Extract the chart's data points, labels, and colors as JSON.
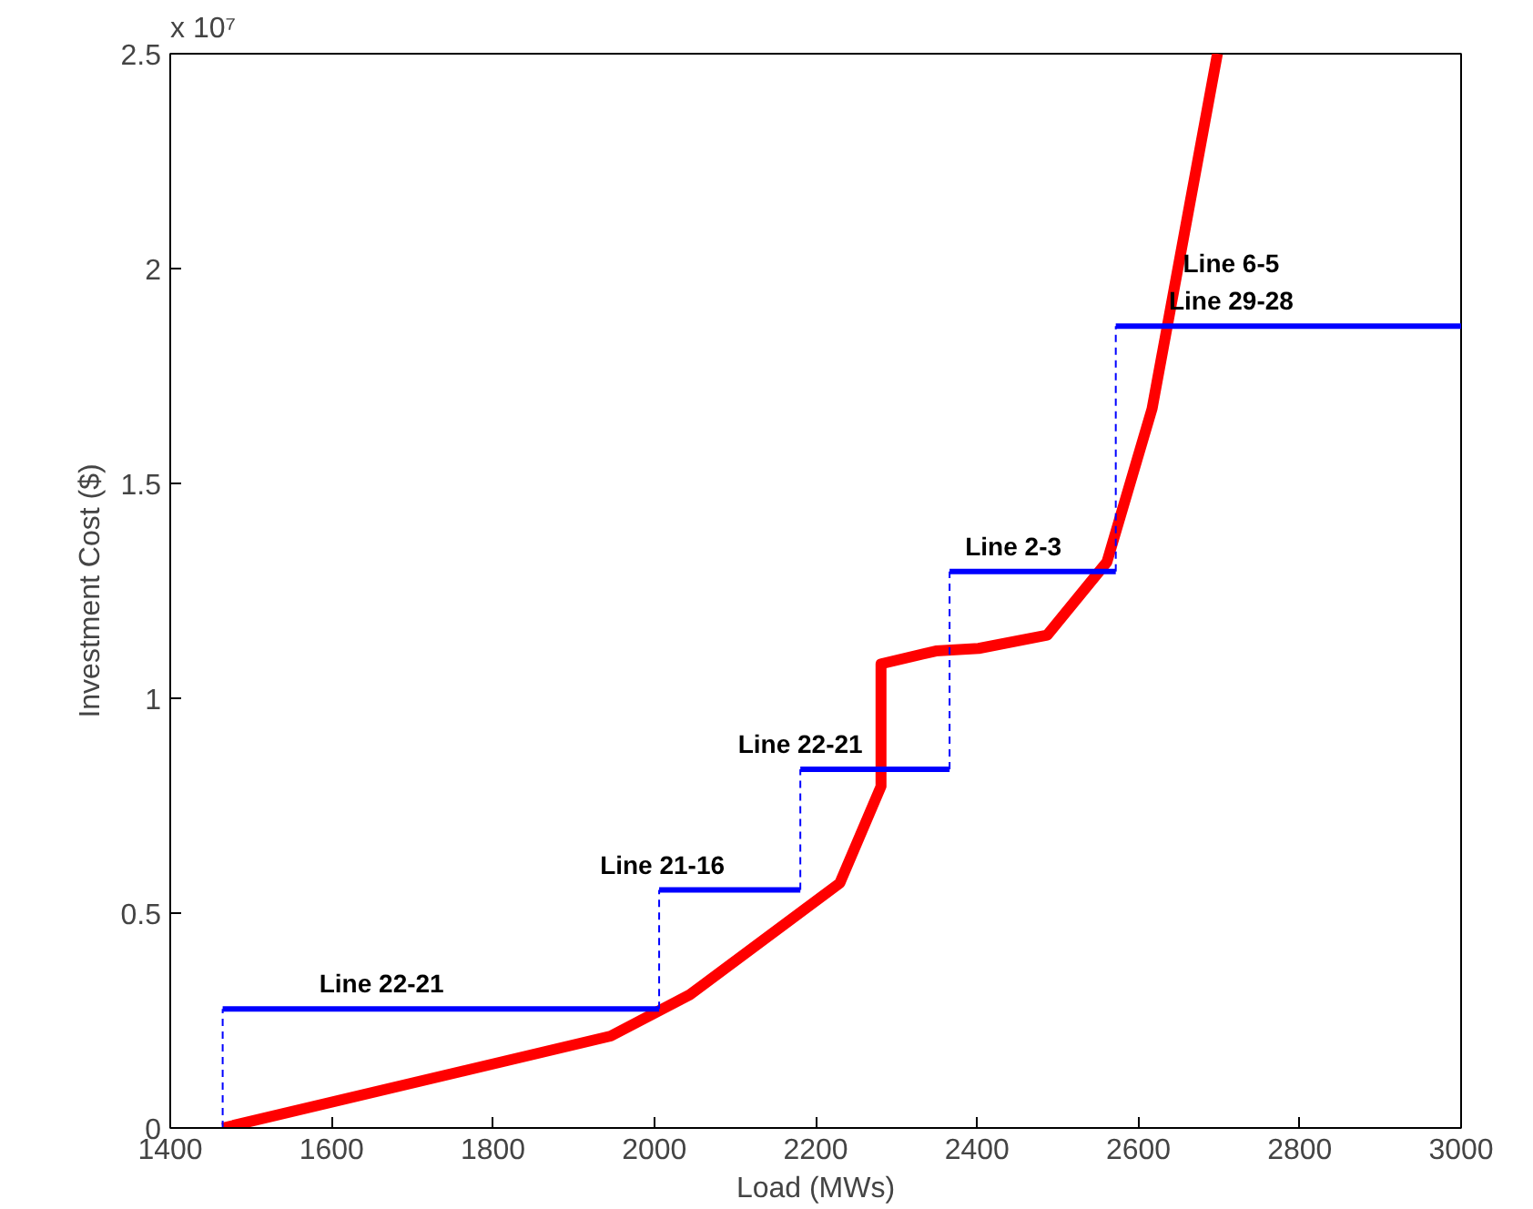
{
  "chart_data": {
    "type": "line",
    "xlabel": "Load (MWs)",
    "ylabel": "Investment Cost ($)",
    "xlim": [
      1400,
      3000
    ],
    "ylim": [
      0,
      2.5
    ],
    "xticks": [
      1400,
      1600,
      1800,
      2000,
      2200,
      2400,
      2600,
      2800,
      3000
    ],
    "yticks": [
      0,
      0.5,
      1,
      1.5,
      2,
      2.5
    ],
    "grid": false,
    "series": [
      {
        "color": "#ff0000",
        "x": [
          1465,
          1946,
          2044,
          2230,
          2281,
          2281,
          2349,
          2402,
          2487,
          2561,
          2617,
          2698
        ],
        "values": [
          0,
          0.214,
          0.31,
          0.57,
          0.795,
          1.08,
          1.11,
          1.116,
          1.147,
          1.317,
          1.674,
          2.5
        ]
      },
      {
        "type": "step",
        "color": "#0000ff",
        "x": [
          1465,
          1465,
          2006,
          2181,
          2366,
          2572,
          3000
        ],
        "values": [
          0,
          0.277,
          0.554,
          0.835,
          1.295,
          1.866,
          1.866
        ]
      }
    ],
    "annotations": [
      "x 10⁷",
      {
        "text": "Line 22-21",
        "x": 1662,
        "y": 0.277
      },
      {
        "text": "Line 21-16",
        "x": 2010,
        "y": 0.554
      },
      {
        "text": "Line 22-21",
        "x": 2181,
        "y": 0.835
      },
      {
        "text": "Line 2-3",
        "x": 2445,
        "y": 1.295
      },
      {
        "text": "Line 6-5\nLine 29-28",
        "x": 2715,
        "y": 1.866
      }
    ]
  }
}
